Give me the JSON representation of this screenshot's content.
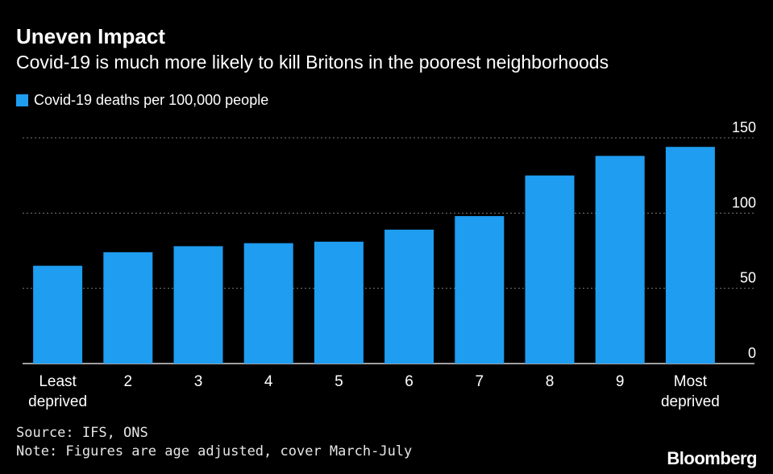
{
  "header": {
    "title": "Uneven Impact",
    "subtitle": "Covid-19 is much more likely to kill Britons in the poorest neighborhoods"
  },
  "legend": {
    "label": "Covid-19 deaths per 100,000 people",
    "color": "#1e9df1"
  },
  "chart_data": {
    "type": "bar",
    "categories": [
      "Least deprived",
      "2",
      "3",
      "4",
      "5",
      "6",
      "7",
      "8",
      "9",
      "Most deprived"
    ],
    "series": [
      {
        "name": "Covid-19 deaths per 100,000 people",
        "values": [
          65,
          74,
          78,
          80,
          81,
          89,
          98,
          125,
          138,
          144
        ]
      }
    ],
    "ylim": [
      0,
      150
    ],
    "yticks": [
      0,
      50,
      100,
      150
    ],
    "grid": true,
    "bar_color": "#1e9df1",
    "legend_position": "top-left"
  },
  "footer": {
    "source": "Source: IFS, ONS",
    "note": "Note: Figures are age adjusted, cover March-July",
    "brand": "Bloomberg"
  }
}
